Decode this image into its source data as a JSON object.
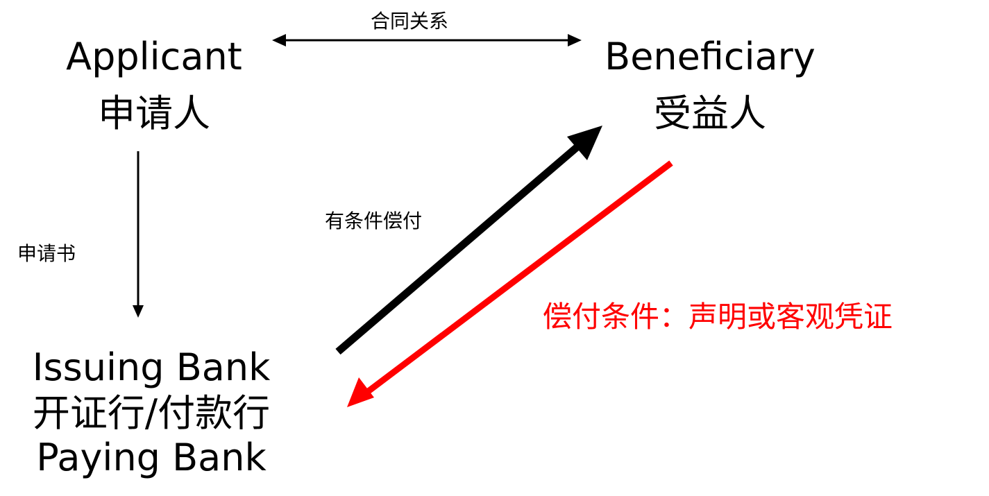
{
  "applicant": {
    "en": "Applicant",
    "zh": "申请人"
  },
  "beneficiary": {
    "en": "Beneficiary",
    "zh": "受益人"
  },
  "issuing_bank": {
    "en": "Issuing Bank",
    "zh": "开证行/付款行",
    "en2": "Paying Bank"
  },
  "labels": {
    "contract": "合同关系",
    "application": "申请书",
    "conditional_payment": "有条件偿付",
    "payment_condition": "偿付条件：声明或客观凭证"
  },
  "colors": {
    "text": "#000000",
    "black_arrow": "#000000",
    "red_arrow": "#ff0000",
    "red_text": "#ff0000"
  }
}
